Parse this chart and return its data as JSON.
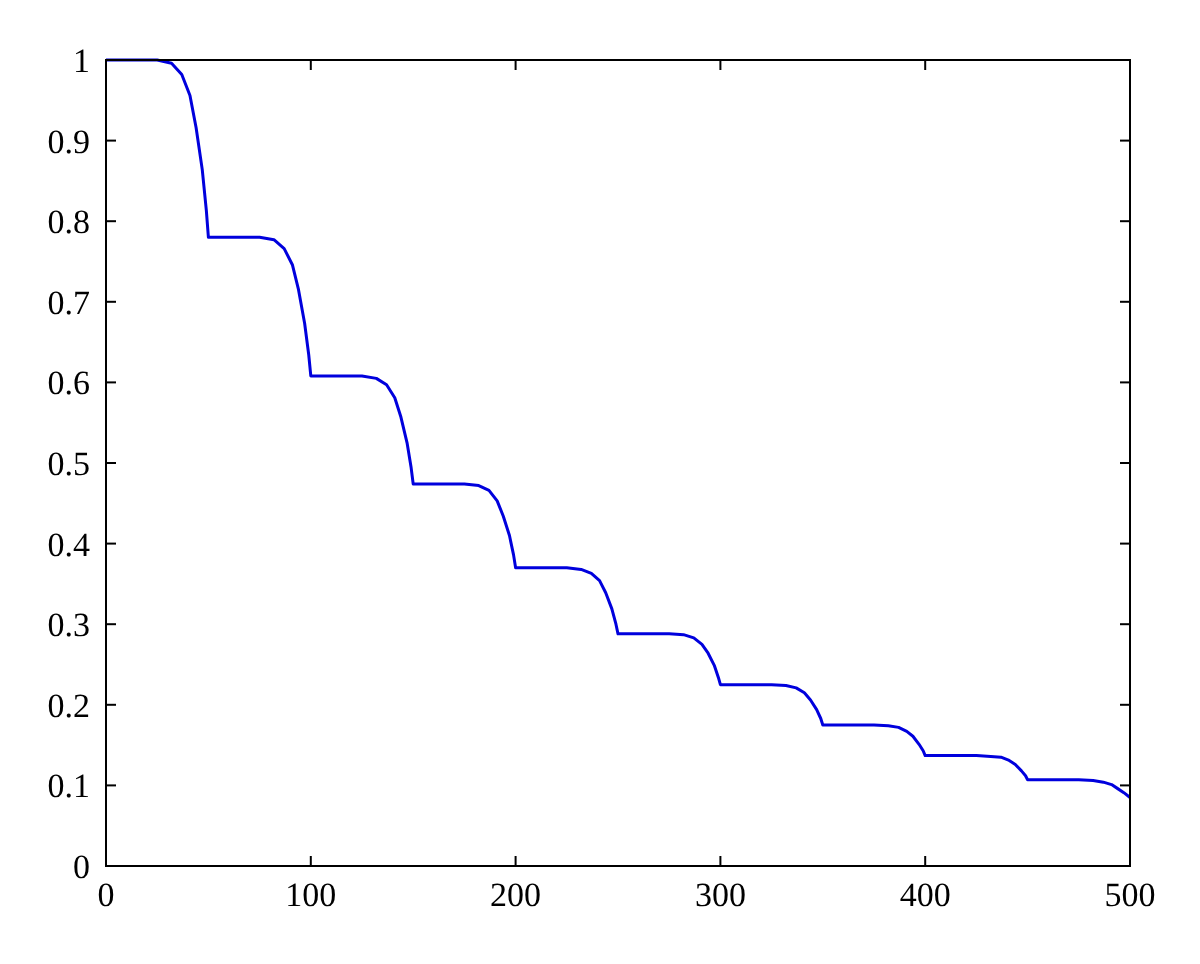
{
  "chart_data": {
    "type": "line",
    "xlim": [
      0,
      500
    ],
    "ylim": [
      0,
      1
    ],
    "xticks": [
      0,
      100,
      200,
      300,
      400,
      500
    ],
    "yticks": [
      0,
      0.1,
      0.2,
      0.3,
      0.4,
      0.5,
      0.6,
      0.7,
      0.8,
      0.9,
      1
    ],
    "grid": false,
    "marker": "none",
    "line_style": "solid",
    "series": [
      {
        "color": "#0000dd",
        "x": [
          0,
          25,
          32,
          37,
          41,
          44,
          47,
          49,
          50,
          75,
          82,
          87,
          91,
          94,
          97,
          99,
          100,
          125,
          132,
          137,
          141,
          144,
          147,
          149,
          150,
          175,
          182,
          187,
          191,
          194,
          197,
          199,
          200,
          225,
          232,
          237,
          241,
          244,
          247,
          249,
          250,
          275,
          282,
          287,
          291,
          294,
          297,
          299,
          300,
          325,
          332,
          337,
          341,
          344,
          347,
          349,
          350,
          375,
          382,
          387,
          391,
          394,
          397,
          399,
          400,
          425,
          432,
          437,
          441,
          444,
          447,
          449,
          450,
          475,
          482,
          487,
          491,
          494,
          497,
          500
        ],
        "values": [
          1,
          1,
          0.996,
          0.982,
          0.956,
          0.916,
          0.864,
          0.813,
          0.78,
          0.78,
          0.777,
          0.766,
          0.746,
          0.715,
          0.673,
          0.634,
          0.608,
          0.608,
          0.605,
          0.597,
          0.581,
          0.557,
          0.525,
          0.494,
          0.474,
          0.474,
          0.472,
          0.466,
          0.453,
          0.434,
          0.41,
          0.386,
          0.37,
          0.37,
          0.368,
          0.363,
          0.354,
          0.339,
          0.319,
          0.3,
          0.288,
          0.288,
          0.287,
          0.283,
          0.275,
          0.264,
          0.249,
          0.234,
          0.225,
          0.225,
          0.224,
          0.221,
          0.215,
          0.206,
          0.194,
          0.183,
          0.175,
          0.175,
          0.174,
          0.172,
          0.167,
          0.161,
          0.151,
          0.143,
          0.137,
          0.137,
          0.136,
          0.135,
          0.131,
          0.126,
          0.118,
          0.112,
          0.107,
          0.107,
          0.106,
          0.104,
          0.101,
          0.096,
          0.091,
          0.085
        ]
      }
    ]
  }
}
